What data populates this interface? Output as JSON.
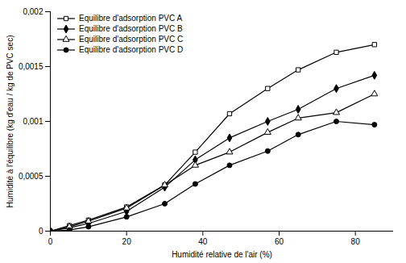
{
  "chart_data": {
    "type": "line",
    "xlabel": "Humidité relative de l'air (%)",
    "ylabel": "Humidité à l'équilibre (kg d'eau / kg de PVC sec)",
    "x": [
      0,
      5,
      10,
      20,
      30,
      38,
      47,
      57,
      65,
      75,
      85
    ],
    "series": [
      {
        "name": "Equilibre d'adsorption PVC A",
        "color": "#000000",
        "marker": "square-open",
        "values": [
          0,
          5e-05,
          0.0001,
          0.00022,
          0.00042,
          0.00072,
          0.00107,
          0.0013,
          0.00147,
          0.00163,
          0.0017
        ]
      },
      {
        "name": "Equilibre d'adsorption PVC B",
        "color": "#000000",
        "marker": "diamond-filled",
        "values": [
          0,
          3e-05,
          7e-05,
          0.00018,
          0.0004,
          0.00065,
          0.00085,
          0.001,
          0.00111,
          0.0013,
          0.00142
        ]
      },
      {
        "name": "Equilibre d'adsorption PVC C",
        "color": "#000000",
        "marker": "triangle-open",
        "values": [
          0,
          4e-05,
          9e-05,
          0.00021,
          0.00042,
          0.0006,
          0.00072,
          0.0009,
          0.00103,
          0.00108,
          0.00125
        ]
      },
      {
        "name": "Equilibre d'adsorption PVC D",
        "color": "#000000",
        "marker": "circle-filled",
        "values": [
          0,
          1e-05,
          4e-05,
          0.00013,
          0.00025,
          0.00043,
          0.0006,
          0.00073,
          0.00088,
          0.001,
          0.00097
        ]
      }
    ],
    "xlim": [
      0,
      90
    ],
    "xticks": [
      0,
      20,
      40,
      60,
      80
    ],
    "ylim": [
      0,
      0.002
    ],
    "yticks": [
      0,
      {
        "value": 0.0005,
        "label": "0,0005"
      },
      {
        "value": 0.001,
        "label": "0,001"
      },
      {
        "value": 0.0015,
        "label": "0,0015"
      },
      {
        "value": 0.002,
        "label": "0,002"
      }
    ],
    "grid": false,
    "legend": "upper left"
  }
}
